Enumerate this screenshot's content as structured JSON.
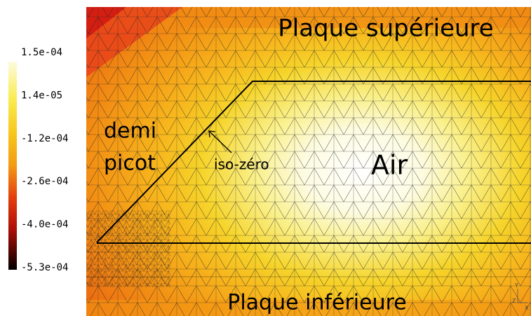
{
  "colorbar": {
    "labels": [
      "1.5e-04",
      "1.4e-05",
      "-1.2e-04",
      "-2.6e-04",
      "-4.0e-04",
      "-5.3e-04"
    ]
  },
  "labels": {
    "top_plate": "Plaque supérieure",
    "bottom_plate": "Plaque inférieure",
    "half_pin_1": "demi",
    "half_pin_2": "picot",
    "iso_zero": "iso-zéro",
    "air": "Air",
    "axis_y": "Y",
    "axis_z": "Z",
    "axis_x": "X"
  }
}
